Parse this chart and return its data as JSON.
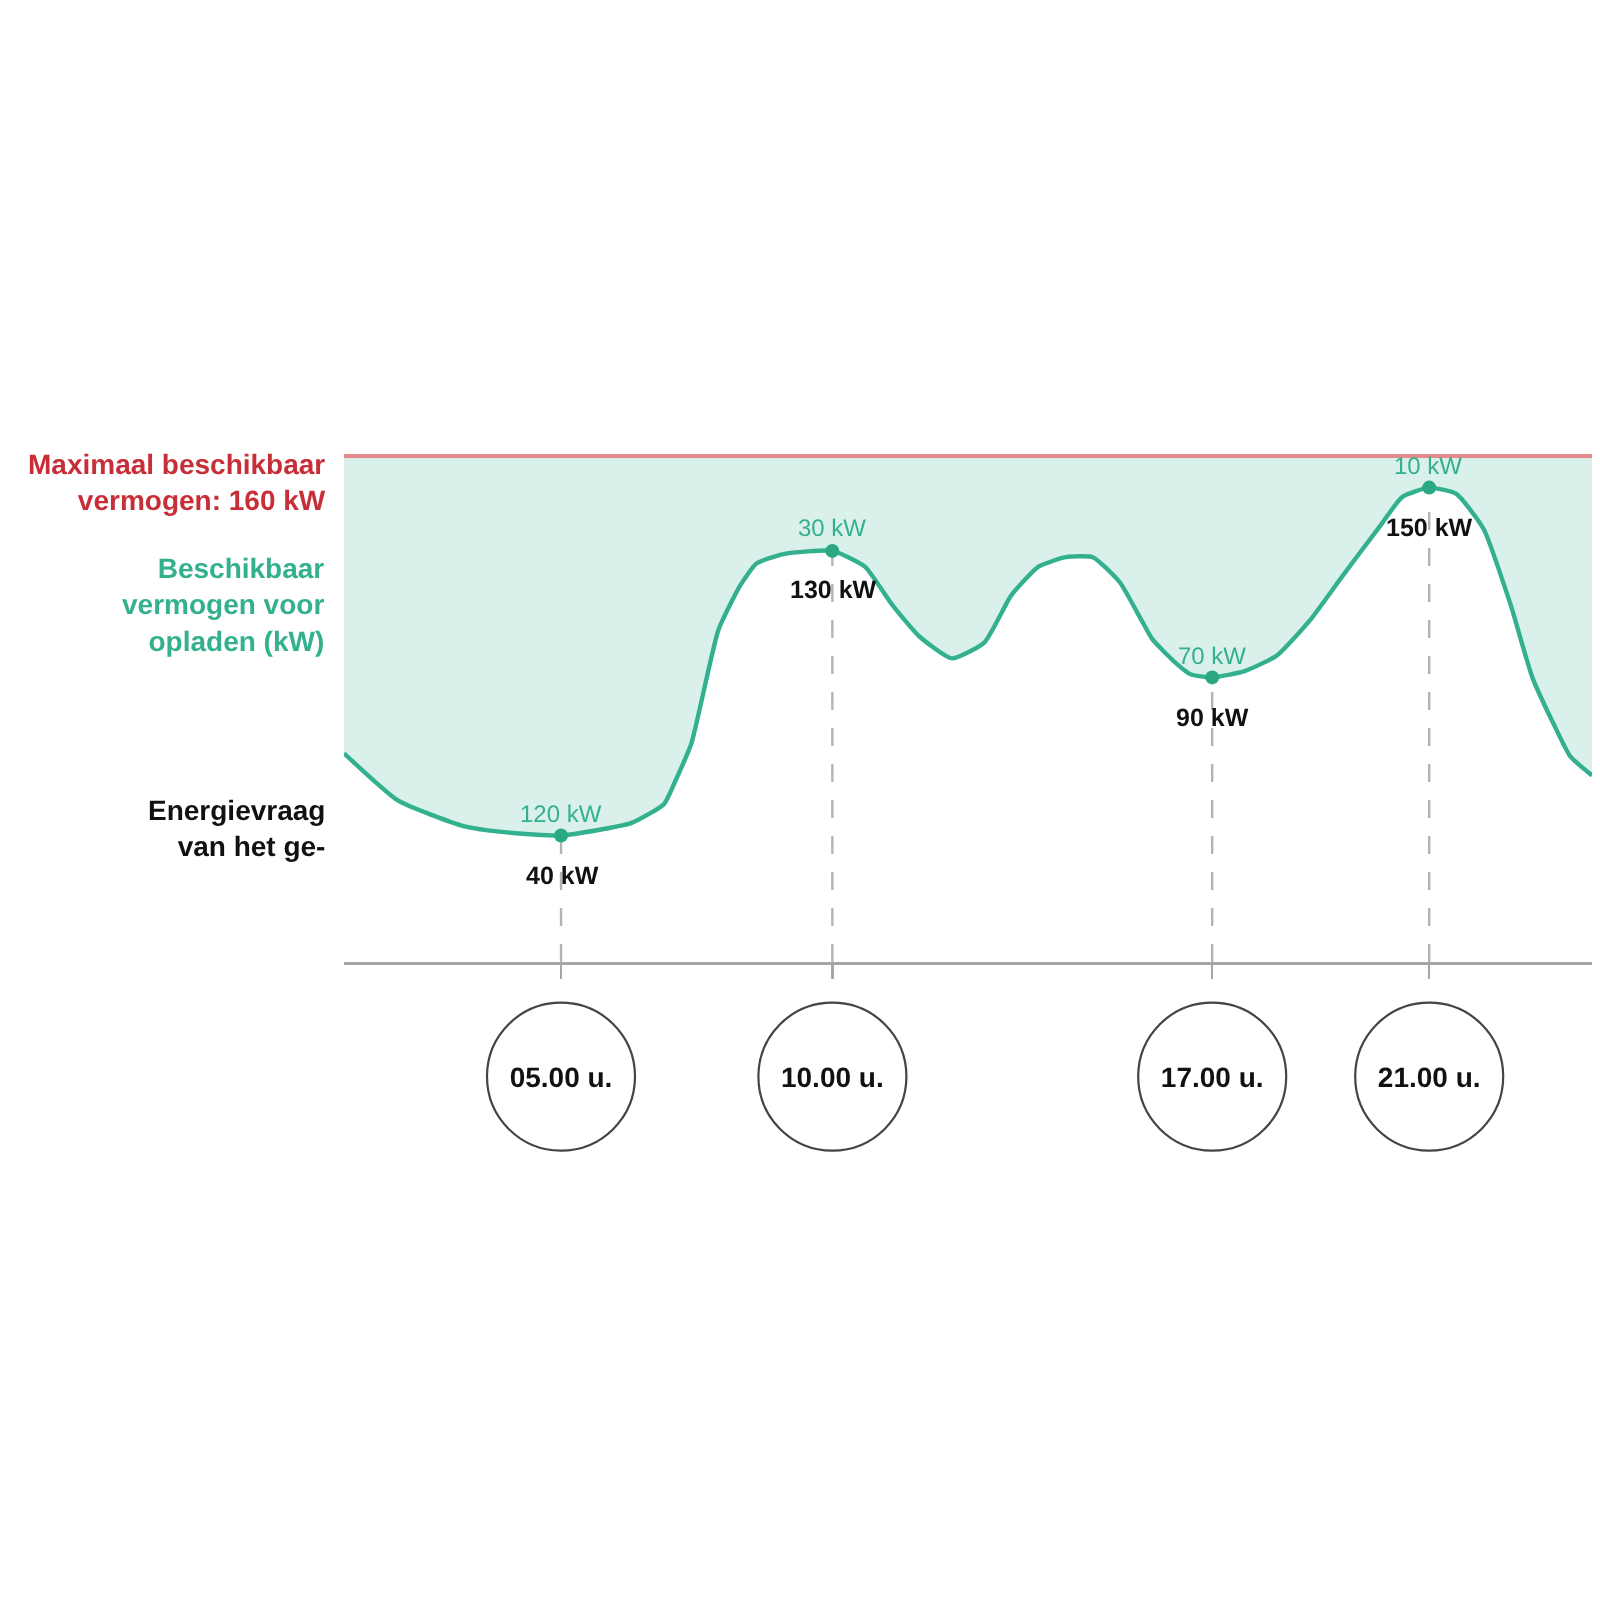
{
  "chart_data": {
    "type": "line",
    "legend": false,
    "tick_labels": "x",
    "x": [
      1,
      2,
      3.2,
      4,
      5,
      6.3,
      6.9,
      7.1,
      7.4,
      7.9,
      8.3,
      8.6,
      9.1,
      10,
      10.6,
      11.1,
      11.6,
      12.2,
      12.8,
      13.3,
      13.8,
      14.3,
      14.8,
      15.3,
      15.7,
      15.9,
      16.3,
      16.6,
      17,
      17.6,
      18.2,
      18.8,
      19.4,
      20.1,
      20.5,
      21,
      21.5,
      22,
      22.5,
      22.9,
      23.3,
      23.6,
      24
    ],
    "xlim": [
      1,
      24
    ],
    "ylim": [
      0,
      160
    ],
    "xticks": [
      {
        "value": 5,
        "label": "05.00 u."
      },
      {
        "value": 10,
        "label": "10.00 u."
      },
      {
        "value": 17,
        "label": "17.00 u."
      },
      {
        "value": 21,
        "label": "21.00 u."
      }
    ],
    "series": [
      {
        "name": "Energievraag van het ge-",
        "color": "#33b08e",
        "values": [
          66,
          51,
          43,
          41,
          40,
          44,
          50,
          57,
          69,
          105,
          119,
          126,
          129,
          130,
          125,
          113,
          103,
          96,
          101,
          116,
          125,
          128,
          128,
          120,
          108,
          102,
          95,
          91,
          90,
          92,
          97,
          108,
          122,
          138,
          147,
          150,
          148,
          137,
          113,
          90,
          75,
          65,
          59
        ],
        "lower": [
          66,
          51,
          43,
          41,
          40,
          44,
          50,
          57,
          69,
          105,
          119,
          126,
          129,
          130,
          125,
          113,
          103,
          96,
          101,
          116,
          125,
          128,
          128,
          120,
          108,
          102,
          95,
          91,
          90,
          92,
          97,
          108,
          122,
          138,
          147,
          150,
          148,
          137,
          113,
          90,
          75,
          65,
          59
        ],
        "upper": [
          160,
          160,
          160,
          160,
          160,
          160,
          160,
          160,
          160,
          160,
          160,
          160,
          160,
          160,
          160,
          160,
          160,
          160,
          160,
          160,
          160,
          160,
          160,
          160,
          160,
          160,
          160,
          160,
          160,
          160,
          160,
          160,
          160,
          160,
          160,
          160,
          160,
          160,
          160,
          160,
          160,
          160,
          160
        ]
      },
      {
        "type": "scatter",
        "marker": "circle",
        "color": "#2aa884",
        "x": [
          5,
          10,
          17,
          21
        ],
        "values": [
          40,
          130,
          90,
          150
        ],
        "value_labels": [
          "40 kW",
          "130 kW",
          "90 kW",
          "150 kW"
        ]
      }
    ],
    "annotations": [
      "Beschikbaar vermogen voor opladen (kW)",
      {
        "text": "120 kW",
        "x": 5,
        "y": 40
      },
      {
        "text": "30 kW",
        "x": 10,
        "y": 130
      },
      {
        "text": "70 kW",
        "x": 17,
        "y": 90
      },
      {
        "text": "10 kW",
        "x": 21,
        "y": 150
      }
    ],
    "ref_lines": [
      {
        "axis": "y",
        "value": 160,
        "label": "Maximaal beschikbaar vermogen: 160 kW",
        "color": "#e4898f"
      },
      {
        "axis": "x",
        "value": 5,
        "color": "#b4b4b4",
        "line_style": "dashed"
      },
      {
        "axis": "x",
        "value": 10,
        "color": "#b4b4b4",
        "line_style": "dashed"
      },
      {
        "axis": "x",
        "value": 17,
        "color": "#b4b4b4",
        "line_style": "dashed"
      },
      {
        "axis": "x",
        "value": 21,
        "color": "#b4b4b4",
        "line_style": "dashed"
      }
    ]
  }
}
